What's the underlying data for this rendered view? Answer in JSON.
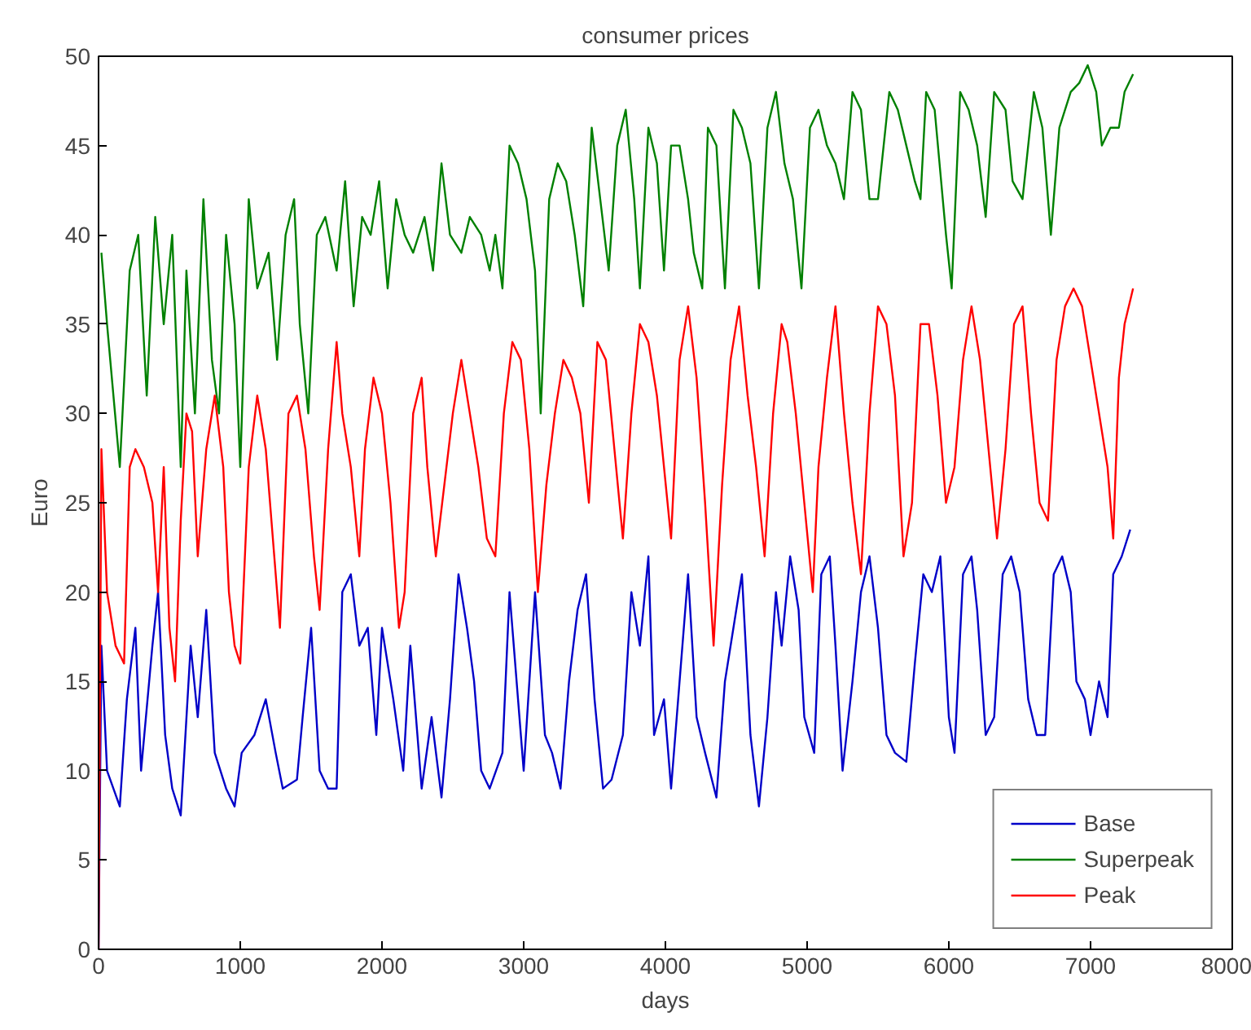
{
  "chart_data": {
    "type": "line",
    "title": "consumer prices",
    "xlabel": "days",
    "ylabel": "Euro",
    "xlim": [
      0,
      8000
    ],
    "ylim": [
      0,
      50
    ],
    "xticks": [
      0,
      1000,
      2000,
      3000,
      4000,
      5000,
      6000,
      7000,
      8000
    ],
    "yticks": [
      0,
      5,
      10,
      15,
      20,
      25,
      30,
      35,
      40,
      45,
      50
    ],
    "grid": false,
    "legend": "bottom right",
    "marker": "none",
    "line_style": "solid",
    "series": [
      {
        "name": "Base",
        "color": "#0000c8",
        "x": [
          0,
          20,
          60,
          150,
          200,
          260,
          300,
          380,
          420,
          470,
          520,
          580,
          650,
          700,
          760,
          820,
          900,
          960,
          1010,
          1100,
          1180,
          1250,
          1300,
          1400,
          1440,
          1500,
          1560,
          1620,
          1680,
          1720,
          1780,
          1840,
          1900,
          1960,
          2000,
          2080,
          2150,
          2200,
          2280,
          2350,
          2420,
          2480,
          2540,
          2600,
          2650,
          2700,
          2760,
          2850,
          2900,
          2960,
          3000,
          3080,
          3150,
          3200,
          3260,
          3320,
          3380,
          3440,
          3500,
          3560,
          3620,
          3700,
          3760,
          3820,
          3880,
          3920,
          3990,
          4040,
          4100,
          4160,
          4220,
          4280,
          4360,
          4420,
          4480,
          4540,
          4600,
          4660,
          4720,
          4780,
          4820,
          4880,
          4940,
          4980,
          5050,
          5100,
          5160,
          5200,
          5250,
          5320,
          5380,
          5440,
          5500,
          5560,
          5620,
          5700,
          5760,
          5820,
          5880,
          5940,
          6000,
          6040,
          6100,
          6160,
          6200,
          6260,
          6320,
          6380,
          6440,
          6500,
          6560,
          6620,
          6680,
          6740,
          6800,
          6860,
          6900,
          6960,
          7000,
          7060,
          7120,
          7160,
          7220,
          7280
        ],
        "values": [
          0,
          17,
          10,
          8,
          14,
          18,
          10,
          17,
          20,
          12,
          9,
          7.5,
          17,
          13,
          19,
          11,
          9,
          8,
          11,
          12,
          14,
          11,
          9,
          9.5,
          13,
          18,
          10,
          9,
          9,
          20,
          21,
          17,
          18,
          12,
          18,
          14,
          10,
          17,
          9,
          13,
          8.5,
          14,
          21,
          18,
          15,
          10,
          9,
          11,
          20,
          14,
          10,
          20,
          12,
          11,
          9,
          15,
          19,
          21,
          14,
          9,
          9.5,
          12,
          20,
          17,
          22,
          12,
          14,
          9,
          15,
          21,
          13,
          11,
          8.5,
          15,
          18,
          21,
          12,
          8,
          13,
          20,
          17,
          22,
          19,
          13,
          11,
          21,
          22,
          17,
          10,
          15,
          20,
          22,
          18,
          12,
          11,
          10.5,
          16,
          21,
          20,
          22,
          13,
          11,
          21,
          22,
          19,
          12,
          13,
          21,
          22,
          20,
          14,
          12,
          12,
          21,
          22,
          20,
          15,
          14,
          12,
          15,
          13,
          21,
          22,
          23.5
        ]
      },
      {
        "name": "Superpeak",
        "color": "#008000",
        "x": [
          20,
          60,
          150,
          220,
          280,
          340,
          400,
          460,
          520,
          580,
          620,
          680,
          740,
          800,
          850,
          900,
          960,
          1000,
          1060,
          1120,
          1200,
          1260,
          1320,
          1380,
          1420,
          1480,
          1540,
          1600,
          1680,
          1740,
          1800,
          1860,
          1920,
          1980,
          2040,
          2100,
          2160,
          2220,
          2300,
          2360,
          2420,
          2480,
          2560,
          2620,
          2700,
          2760,
          2800,
          2850,
          2900,
          2960,
          3020,
          3080,
          3120,
          3180,
          3240,
          3300,
          3360,
          3420,
          3480,
          3540,
          3600,
          3660,
          3720,
          3780,
          3820,
          3880,
          3940,
          3990,
          4040,
          4100,
          4160,
          4200,
          4260,
          4300,
          4360,
          4420,
          4480,
          4540,
          4600,
          4660,
          4720,
          4780,
          4840,
          4900,
          4960,
          5020,
          5080,
          5140,
          5200,
          5260,
          5320,
          5380,
          5440,
          5500,
          5580,
          5640,
          5700,
          5760,
          5800,
          5840,
          5900,
          5980,
          6020,
          6080,
          6140,
          6200,
          6260,
          6320,
          6400,
          6450,
          6520,
          6600,
          6660,
          6720,
          6780,
          6860,
          6920,
          6980,
          7040,
          7080,
          7140,
          7200,
          7240,
          7300
        ],
        "values": [
          39,
          35,
          27,
          38,
          40,
          31,
          41,
          35,
          40,
          27,
          38,
          30,
          42,
          33,
          30,
          40,
          35,
          27,
          42,
          37,
          39,
          33,
          40,
          42,
          35,
          30,
          40,
          41,
          38,
          43,
          36,
          41,
          40,
          43,
          37,
          42,
          40,
          39,
          41,
          38,
          44,
          40,
          39,
          41,
          40,
          38,
          40,
          37,
          45,
          44,
          42,
          38,
          30,
          42,
          44,
          43,
          40,
          36,
          46,
          42,
          38,
          45,
          47,
          42,
          37,
          46,
          44,
          38,
          45,
          45,
          42,
          39,
          37,
          46,
          45,
          37,
          47,
          46,
          44,
          37,
          46,
          48,
          44,
          42,
          37,
          46,
          47,
          45,
          44,
          42,
          48,
          47,
          42,
          42,
          48,
          47,
          45,
          43,
          42,
          48,
          47,
          40,
          37,
          48,
          47,
          45,
          41,
          48,
          47,
          43,
          42,
          48,
          46,
          40,
          46,
          48,
          48.5,
          49.5,
          48,
          45,
          46,
          46,
          48,
          49
        ]
      },
      {
        "name": "Peak",
        "color": "#ff0000",
        "x": [
          0,
          20,
          60,
          120,
          180,
          220,
          260,
          320,
          380,
          420,
          460,
          500,
          540,
          580,
          620,
          660,
          700,
          760,
          820,
          880,
          920,
          960,
          1000,
          1060,
          1120,
          1180,
          1240,
          1280,
          1340,
          1400,
          1460,
          1520,
          1560,
          1620,
          1680,
          1720,
          1780,
          1840,
          1880,
          1940,
          2000,
          2060,
          2120,
          2160,
          2220,
          2280,
          2320,
          2380,
          2440,
          2500,
          2560,
          2620,
          2680,
          2740,
          2800,
          2860,
          2920,
          2980,
          3040,
          3100,
          3160,
          3220,
          3280,
          3340,
          3400,
          3460,
          3520,
          3580,
          3640,
          3700,
          3760,
          3820,
          3880,
          3940,
          3990,
          4040,
          4100,
          4160,
          4220,
          4280,
          4340,
          4400,
          4460,
          4520,
          4580,
          4640,
          4700,
          4760,
          4820,
          4860,
          4920,
          4980,
          5040,
          5080,
          5140,
          5200,
          5260,
          5320,
          5380,
          5440,
          5500,
          5560,
          5620,
          5680,
          5740,
          5800,
          5860,
          5920,
          5980,
          6040,
          6100,
          6160,
          6220,
          6280,
          6340,
          6400,
          6460,
          6520,
          6580,
          6640,
          6700,
          6760,
          6820,
          6880,
          6940,
          7000,
          7060,
          7120,
          7160,
          7200,
          7240,
          7300
        ],
        "values": [
          0,
          28,
          20,
          17,
          16,
          27,
          28,
          27,
          25,
          20,
          27,
          18,
          15,
          24,
          30,
          29,
          22,
          28,
          31,
          27,
          20,
          17,
          16,
          27,
          31,
          28,
          22,
          18,
          30,
          31,
          28,
          22,
          19,
          28,
          34,
          30,
          27,
          22,
          28,
          32,
          30,
          25,
          18,
          20,
          30,
          32,
          27,
          22,
          26,
          30,
          33,
          30,
          27,
          23,
          22,
          30,
          34,
          33,
          28,
          20,
          26,
          30,
          33,
          32,
          30,
          25,
          34,
          33,
          28,
          23,
          30,
          35,
          34,
          31,
          27,
          23,
          33,
          36,
          32,
          25,
          17,
          26,
          33,
          36,
          31,
          27,
          22,
          30,
          35,
          34,
          30,
          25,
          20,
          27,
          32,
          36,
          30,
          25,
          21,
          30,
          36,
          35,
          31,
          22,
          25,
          35,
          35,
          31,
          25,
          27,
          33,
          36,
          33,
          28,
          23,
          28,
          35,
          36,
          30,
          25,
          24,
          33,
          36,
          37,
          36,
          33,
          30,
          27,
          23,
          32,
          35,
          37
        ]
      }
    ]
  }
}
